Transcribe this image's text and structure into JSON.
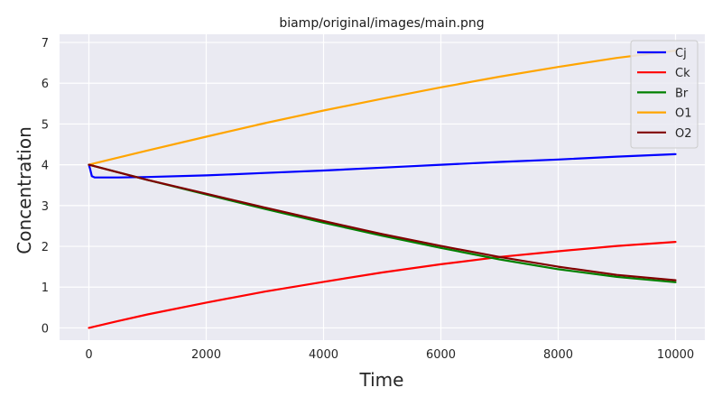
{
  "chart_data": {
    "type": "line",
    "title": "biamp/original/images/main.png",
    "xlabel": "Time",
    "ylabel": "Concentration",
    "xlim": [
      -500,
      10500
    ],
    "ylim": [
      -0.3,
      7.2
    ],
    "xticks": [
      0,
      2000,
      4000,
      6000,
      8000,
      10000
    ],
    "yticks": [
      0,
      1,
      2,
      3,
      4,
      5,
      6,
      7
    ],
    "grid": true,
    "legend": "top-right",
    "background": "#eaeaf2",
    "series": [
      {
        "name": "Cj",
        "color": "#0000ff",
        "x": [
          0,
          20,
          50,
          100,
          500,
          1000,
          2000,
          3000,
          4000,
          5000,
          6000,
          7000,
          8000,
          9000,
          10000
        ],
        "y": [
          4.0,
          3.9,
          3.72,
          3.69,
          3.69,
          3.7,
          3.74,
          3.8,
          3.86,
          3.93,
          4.0,
          4.07,
          4.13,
          4.2,
          4.26
        ]
      },
      {
        "name": "Ck",
        "color": "#ff0000",
        "x": [
          0,
          500,
          1000,
          2000,
          3000,
          4000,
          5000,
          6000,
          7000,
          8000,
          9000,
          10000
        ],
        "y": [
          0.0,
          0.17,
          0.33,
          0.62,
          0.89,
          1.13,
          1.36,
          1.56,
          1.74,
          1.88,
          2.01,
          2.11
        ]
      },
      {
        "name": "Br",
        "color": "#008000",
        "x": [
          0,
          1000,
          2000,
          3000,
          4000,
          5000,
          6000,
          7000,
          8000,
          9000,
          10000
        ],
        "y": [
          4.0,
          3.63,
          3.27,
          2.92,
          2.58,
          2.26,
          1.96,
          1.68,
          1.44,
          1.25,
          1.12
        ]
      },
      {
        "name": "O1",
        "color": "#ffa500",
        "x": [
          0,
          1000,
          2000,
          3000,
          4000,
          5000,
          6000,
          7000,
          8000,
          9000,
          10000
        ],
        "y": [
          4.0,
          4.35,
          4.69,
          5.02,
          5.33,
          5.62,
          5.9,
          6.16,
          6.4,
          6.62,
          6.8
        ]
      },
      {
        "name": "O2",
        "color": "#800000",
        "x": [
          0,
          1000,
          2000,
          3000,
          4000,
          5000,
          6000,
          7000,
          8000,
          9000,
          10000
        ],
        "y": [
          4.0,
          3.63,
          3.29,
          2.95,
          2.62,
          2.3,
          2.01,
          1.74,
          1.5,
          1.3,
          1.17
        ]
      }
    ]
  }
}
